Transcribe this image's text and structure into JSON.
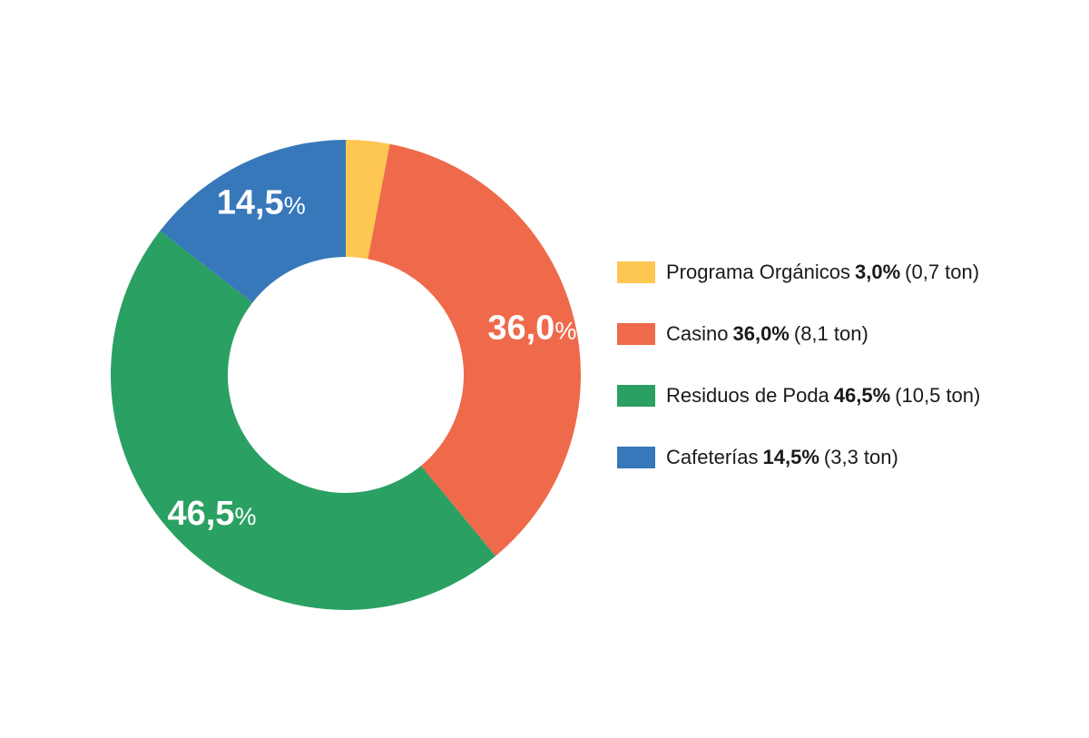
{
  "chart_data": {
    "type": "pie",
    "donut": true,
    "title": "",
    "series": [
      {
        "name": "Programa Orgánicos",
        "value": 3.0,
        "value_label": "3,0%",
        "amount": "(0,7 ton)",
        "color": "#FEC752",
        "slice_number": "",
        "slice_unit": ""
      },
      {
        "name": "Casino",
        "value": 36.0,
        "value_label": "36,0%",
        "amount": "(8,1 ton)",
        "color": "#EE6A4B",
        "slice_number": "36,0",
        "slice_unit": "%"
      },
      {
        "name": "Residuos de Poda",
        "value": 46.5,
        "value_label": "46,5%",
        "amount": "(10,5 ton)",
        "color": "#2AA063",
        "slice_number": "46,5",
        "slice_unit": "%"
      },
      {
        "name": "Cafeterías",
        "value": 14.5,
        "value_label": "14,5%",
        "amount": "(3,3 ton)",
        "color": "#3778BA",
        "slice_number": "14,5",
        "slice_unit": "%"
      }
    ],
    "start_angle": "12 o'clock",
    "direction": "clockwise",
    "legend_position": "right"
  }
}
